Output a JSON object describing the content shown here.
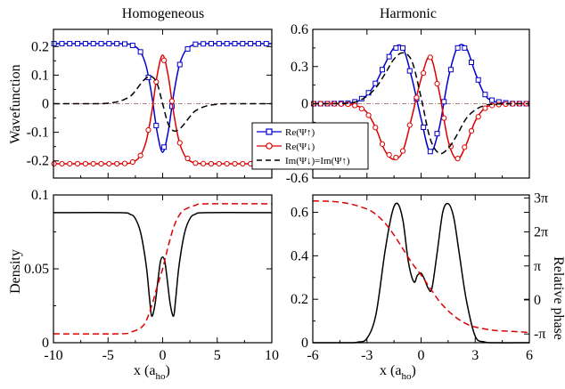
{
  "panels_text": {
    "top_left_title": "Homogeneous",
    "top_right_title": "Harmonic",
    "ylabel_top": "Wavefunction",
    "ylabel_bottom": "Density",
    "ylabel_bottom_right": "Relative phase",
    "xlabel_left": "x (a",
    "xlabel_left_sub": "ho",
    "xlabel_right": "x (a",
    "xlabel_right_sub": "ho",
    "xlabel_close": ")"
  },
  "legend": {
    "items": [
      {
        "label": "Re(Ψ↑)",
        "color": "#0000cc",
        "marker": "square",
        "dash": "none"
      },
      {
        "label": "Re(Ψ↓)",
        "color": "#dd0000",
        "marker": "circle",
        "dash": "none"
      },
      {
        "label": "Im(Ψ↓)=Im(Ψ↑)",
        "color": "#000000",
        "marker": "none",
        "dash": "dashed"
      }
    ]
  },
  "colors": {
    "up": "#0000cc",
    "down": "#dd0000",
    "im": "#000000",
    "zero": "#b08080",
    "phase": "#dd0000",
    "density": "#000000"
  },
  "chart_data": [
    {
      "type": "line",
      "name": "top-left",
      "title": "Homogeneous",
      "xlim": [
        -10,
        10
      ],
      "ylim": [
        -0.26,
        0.26
      ],
      "yticks": [
        -0.2,
        -0.1,
        0,
        0.1,
        0.2
      ],
      "ytick_labels": [
        "-0.2",
        "-0.1",
        "0",
        "0.1",
        "0.2"
      ],
      "ylabel": "Wavefunction",
      "grid": false,
      "series": [
        {
          "name": "Re(Ψ↑)",
          "x": [
            -10,
            -9,
            -8,
            -7,
            -6,
            -5,
            -4,
            -3,
            -2.5,
            -2,
            -1.5,
            -1,
            -0.5,
            0,
            0.5,
            1,
            1.5,
            2,
            2.5,
            3,
            4,
            5,
            6,
            7,
            8,
            9,
            10
          ],
          "y": [
            0.21,
            0.21,
            0.21,
            0.21,
            0.21,
            0.21,
            0.21,
            0.208,
            0.2,
            0.18,
            0.13,
            0.03,
            -0.1,
            -0.17,
            -0.1,
            0.03,
            0.13,
            0.18,
            0.2,
            0.208,
            0.21,
            0.21,
            0.21,
            0.21,
            0.21,
            0.21,
            0.21
          ]
        },
        {
          "name": "Re(Ψ↓)",
          "x": [
            -10,
            -9,
            -8,
            -7,
            -6,
            -5,
            -4,
            -3,
            -2.5,
            -2,
            -1.5,
            -1,
            -0.5,
            0,
            0.5,
            1,
            1.5,
            2,
            2.5,
            3,
            4,
            5,
            6,
            7,
            8,
            9,
            10
          ],
          "y": [
            -0.21,
            -0.21,
            -0.21,
            -0.21,
            -0.21,
            -0.21,
            -0.21,
            -0.208,
            -0.2,
            -0.18,
            -0.13,
            -0.03,
            0.1,
            0.17,
            0.1,
            -0.03,
            -0.13,
            -0.18,
            -0.2,
            -0.208,
            -0.21,
            -0.21,
            -0.21,
            -0.21,
            -0.21,
            -0.21,
            -0.21
          ]
        },
        {
          "name": "Im(Ψ↓)=Im(Ψ↑)",
          "x": [
            -10,
            -6,
            -5,
            -4,
            -3,
            -2.5,
            -2,
            -1.5,
            -1,
            -0.5,
            0,
            0.5,
            1,
            1.5,
            2,
            2.5,
            3,
            4,
            5,
            6,
            10
          ],
          "y": [
            0,
            0,
            0.002,
            0.008,
            0.025,
            0.045,
            0.07,
            0.09,
            0.095,
            0.07,
            0,
            -0.07,
            -0.095,
            -0.09,
            -0.07,
            -0.045,
            -0.025,
            -0.008,
            -0.002,
            0,
            0
          ]
        }
      ]
    },
    {
      "type": "line",
      "name": "top-right",
      "title": "Harmonic",
      "xlim": [
        -6,
        6
      ],
      "ylim": [
        -0.6,
        0.6
      ],
      "yticks": [
        -0.6,
        -0.3,
        0,
        0.3,
        0.6
      ],
      "ytick_labels": [
        "-0.6",
        "-0.3",
        "0",
        "0.3",
        "0.6"
      ],
      "grid": false,
      "series": [
        {
          "name": "Re(Ψ↑)",
          "x": [
            -6,
            -5,
            -4,
            -3.5,
            -3,
            -2.5,
            -2,
            -1.5,
            -1,
            -0.5,
            0,
            0.5,
            1,
            1.5,
            2,
            2.5,
            3,
            3.5,
            4,
            5,
            6
          ],
          "y": [
            0,
            0,
            0.005,
            0.02,
            0.07,
            0.17,
            0.32,
            0.45,
            0.45,
            0.2,
            -0.12,
            -0.39,
            -0.2,
            0.2,
            0.45,
            0.45,
            0.25,
            0.08,
            0.02,
            0.001,
            0
          ]
        },
        {
          "name": "Re(Ψ↓)",
          "x": [
            -6,
            -5,
            -4,
            -3.5,
            -3,
            -2.5,
            -2,
            -1.5,
            -1,
            -0.5,
            0,
            0.5,
            1,
            1.5,
            2,
            2.5,
            3,
            3.5,
            4,
            5,
            6
          ],
          "y": [
            0,
            0,
            -0.005,
            -0.02,
            -0.07,
            -0.2,
            -0.38,
            -0.45,
            -0.38,
            -0.1,
            0.2,
            0.38,
            0.1,
            -0.3,
            -0.45,
            -0.33,
            -0.14,
            -0.04,
            -0.01,
            -0.001,
            0
          ]
        },
        {
          "name": "Im(Ψ↓)=Im(Ψ↑)",
          "x": [
            -6,
            -5,
            -4,
            -3.5,
            -3,
            -2.5,
            -2,
            -1.5,
            -1,
            -0.5,
            0,
            0.5,
            1,
            1.5,
            2,
            2.5,
            3,
            3.5,
            4,
            5,
            6
          ],
          "y": [
            0,
            0,
            0.005,
            0.02,
            0.06,
            0.13,
            0.24,
            0.36,
            0.41,
            0.34,
            0.05,
            -0.28,
            -0.4,
            -0.36,
            -0.25,
            -0.12,
            -0.05,
            -0.015,
            -0.004,
            0,
            0
          ]
        }
      ]
    },
    {
      "type": "line",
      "name": "bottom-left",
      "xlim": [
        -10,
        10
      ],
      "ylim": [
        0,
        0.1
      ],
      "yticks": [
        0,
        0.05,
        0.1
      ],
      "ytick_labels": [
        "0",
        "0.05",
        "0.1"
      ],
      "xticks": [
        -10,
        -5,
        0,
        5,
        10
      ],
      "xtick_labels": [
        "-10",
        "-5",
        "0",
        "5",
        "10"
      ],
      "ylabel": "Density",
      "xlabel": "x (aho)",
      "grid": false,
      "series": [
        {
          "name": "density",
          "x": [
            -10,
            -4,
            -3,
            -2.5,
            -2,
            -1.5,
            -1.2,
            -1,
            -0.7,
            -0.4,
            -0.2,
            0,
            0.2,
            0.4,
            0.7,
            1,
            1.2,
            1.5,
            2,
            2.5,
            3,
            4,
            10
          ],
          "y": [
            0.088,
            0.088,
            0.087,
            0.084,
            0.074,
            0.052,
            0.03,
            0.018,
            0.026,
            0.044,
            0.055,
            0.058,
            0.055,
            0.044,
            0.026,
            0.018,
            0.03,
            0.052,
            0.074,
            0.084,
            0.087,
            0.088,
            0.088
          ]
        },
        {
          "name": "relative phase",
          "x": [
            -10,
            -4,
            -3,
            -2,
            -1.5,
            -1,
            -0.5,
            0,
            0.5,
            1,
            1.5,
            2,
            3,
            4,
            10
          ],
          "y": [
            0.006,
            0.006,
            0.007,
            0.01,
            0.015,
            0.025,
            0.038,
            0.05,
            0.065,
            0.078,
            0.086,
            0.09,
            0.093,
            0.094,
            0.094
          ]
        }
      ]
    },
    {
      "type": "line",
      "name": "bottom-right",
      "xlim": [
        -6,
        6
      ],
      "ylim": [
        0,
        0.68
      ],
      "yticks": [
        0,
        0.2,
        0.4,
        0.6
      ],
      "ytick_labels": [
        "0",
        "0.2",
        "0.4",
        "0.6"
      ],
      "xticks": [
        -6,
        -3,
        0,
        3,
        6
      ],
      "xtick_labels": [
        "-6",
        "-3",
        "0",
        "3",
        "6"
      ],
      "y2ticks": [
        -3.1416,
        0,
        3.1416,
        6.2832,
        9.4248
      ],
      "y2tick_labels": [
        "-π",
        "0",
        "π",
        "2π",
        "3π"
      ],
      "y2lim": [
        -3.95,
        9.7
      ],
      "ylabel2": "Relative phase",
      "xlabel": "x (aho)",
      "grid": false,
      "series": [
        {
          "name": "density",
          "x": [
            -6,
            -4,
            -3.5,
            -3,
            -2.5,
            -2,
            -1.6,
            -1.3,
            -1,
            -0.7,
            -0.4,
            -0.2,
            0,
            0.2,
            0.4,
            0.6,
            0.9,
            1.2,
            1.5,
            1.8,
            2.1,
            2.5,
            3,
            3.5,
            4,
            6
          ],
          "y": [
            0,
            0,
            0.003,
            0.02,
            0.13,
            0.42,
            0.6,
            0.64,
            0.56,
            0.37,
            0.28,
            0.31,
            0.32,
            0.29,
            0.25,
            0.25,
            0.42,
            0.6,
            0.64,
            0.58,
            0.42,
            0.2,
            0.03,
            0.004,
            0,
            0
          ]
        },
        {
          "name": "relative phase",
          "x": [
            -6,
            -5,
            -4,
            -3,
            -2.5,
            -2,
            -1.5,
            -1,
            -0.5,
            0,
            0.5,
            1,
            1.5,
            2,
            2.5,
            3,
            4,
            5,
            6
          ],
          "y2": [
            9.15,
            9.1,
            8.9,
            8.4,
            7.9,
            7.1,
            6.0,
            4.7,
            3.4,
            2.3,
            1.1,
            -0.1,
            -1.0,
            -1.7,
            -2.2,
            -2.5,
            -2.8,
            -2.9,
            -3.0
          ]
        }
      ]
    }
  ]
}
